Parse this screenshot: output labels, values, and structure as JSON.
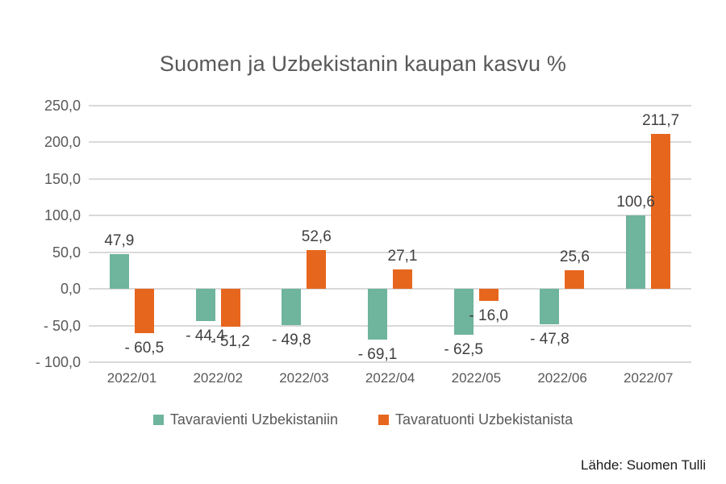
{
  "title": "Suomen ja Uzbekistanin kaupan kasvu %",
  "source": "Lähde: Suomen Tulli",
  "colors": {
    "export": "#6FB49D",
    "import": "#E7661E",
    "grid": "#D9D9D9",
    "axis_text": "#595959",
    "label_text": "#404040",
    "title_text": "#595959"
  },
  "chart_data": {
    "type": "bar",
    "title": "Suomen ja Uzbekistanin kaupan kasvu %",
    "categories": [
      "2022/01",
      "2022/02",
      "2022/03",
      "2022/04",
      "2022/05",
      "2022/06",
      "2022/07"
    ],
    "series": [
      {
        "name": "Tavaravienti Uzbekistaniin",
        "color_key": "export",
        "values": [
          47.9,
          -44.4,
          -49.8,
          -69.1,
          -62.5,
          -47.8,
          100.6
        ],
        "labels": [
          "47,9",
          "- 44,4",
          "- 49,8",
          "- 69,1",
          "- 62,5",
          "- 47,8",
          "100,6"
        ]
      },
      {
        "name": "Tavaratuonti Uzbekistanista",
        "color_key": "import",
        "values": [
          -60.5,
          -51.2,
          52.6,
          27.1,
          -16.0,
          25.6,
          211.7
        ],
        "labels": [
          "- 60,5",
          "- 51,2",
          "52,6",
          "27,1",
          "- 16,0",
          "25,6",
          "211,7"
        ]
      }
    ],
    "y_ticks": [
      250,
      200,
      150,
      100,
      50,
      0,
      -50,
      -100
    ],
    "y_tick_labels": [
      "250,0",
      "200,0",
      "150,0",
      "100,0",
      "50,0",
      "0,0",
      "- 50,0",
      "- 100,0"
    ],
    "ylim": [
      -100,
      250
    ],
    "xlabel": "",
    "ylabel": "",
    "grid": true,
    "legend_position": "bottom"
  }
}
